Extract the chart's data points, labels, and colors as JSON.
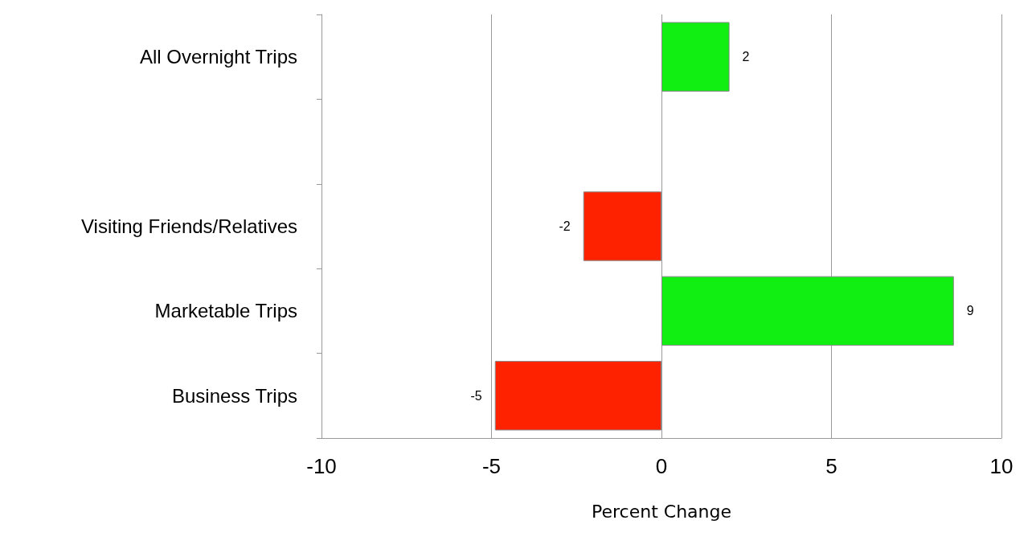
{
  "chart_data": {
    "type": "bar",
    "orientation": "horizontal",
    "xlabel": "Percent Change",
    "categories": [
      "All Overnight Trips",
      null,
      "Visiting Friends/Relatives",
      "Marketable Trips",
      "Business Trips"
    ],
    "values": [
      2,
      null,
      -2.3,
      8.6,
      -4.9
    ],
    "value_labels": [
      "2",
      null,
      "-2",
      "9",
      "-5"
    ],
    "colors": [
      "#11ee11",
      null,
      "#ff2200",
      "#11ee11",
      "#ff2200"
    ],
    "xlim": [
      -10,
      10
    ],
    "xticks": [
      -10,
      -5,
      0,
      5,
      10
    ],
    "grid": "x"
  }
}
